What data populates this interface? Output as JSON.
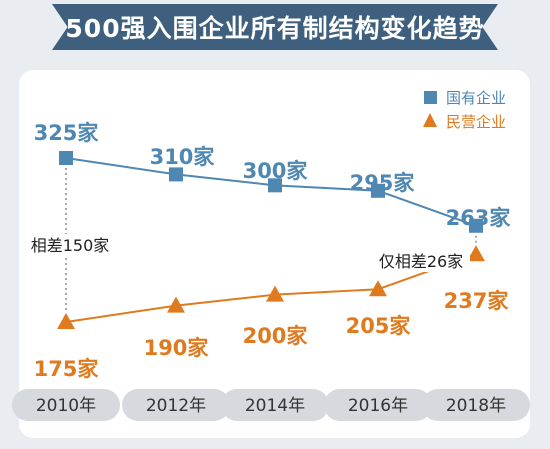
{
  "title": "500强入围企业所有制结构变化趋势",
  "colors": {
    "state": "#4f87b3",
    "private": "#e07a1f",
    "banner": "#3e5f7e",
    "year_pill": "#d6dade",
    "year_text": "#333333"
  },
  "chart_data": {
    "type": "line",
    "categories": [
      "2010年",
      "2012年",
      "2014年",
      "2016年",
      "2018年"
    ],
    "series": [
      {
        "name": "国有企业",
        "marker": "square",
        "values": [
          325,
          310,
          300,
          295,
          263
        ],
        "labels": [
          "325家",
          "310家",
          "300家",
          "295家",
          "263家"
        ]
      },
      {
        "name": "民营企业",
        "marker": "triangle",
        "values": [
          175,
          190,
          200,
          205,
          237
        ],
        "labels": [
          "175家",
          "190家",
          "200家",
          "205家",
          "237家"
        ]
      }
    ],
    "legend_position": "top-right",
    "annotations": [
      "相差150家",
      "仅相差26家"
    ],
    "grid": false
  }
}
